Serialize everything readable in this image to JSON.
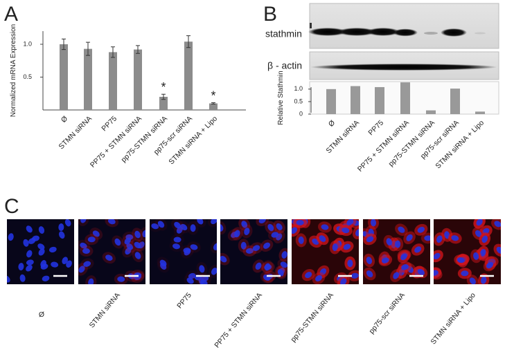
{
  "panel_labels": [
    "A",
    "B",
    "C"
  ],
  "blot_labels": [
    "stathmin",
    "β - actin"
  ],
  "image_labels": [
    "Ø",
    "STMN siRNA",
    "PP75",
    "PP75 + STMN siRNA",
    "pp75-STMN siRNA",
    "pp75-scr siRNA",
    "STMN siRNA + Lipo"
  ],
  "chart_data": [
    {
      "type": "bar",
      "y_label": "Normalized mRNA Expression",
      "categories": [
        "Ø",
        "STMN siRNA",
        "PP75",
        "PP75 + STMN siRNA",
        "pp75-STMN siRNA",
        "pp75-scr siRNA",
        "STMN siRNA + Lipo"
      ],
      "values": [
        1.0,
        0.93,
        0.88,
        0.92,
        0.2,
        1.04,
        0.1
      ],
      "errors": [
        0.08,
        0.1,
        0.08,
        0.06,
        0.04,
        0.09,
        0.01
      ],
      "annotations": [
        null,
        null,
        null,
        null,
        "*",
        null,
        "*"
      ],
      "color": "#8c8c8c",
      "ylim": [
        0,
        1.2
      ],
      "yticks": [
        {
          "value": 0.5,
          "label": "0.5"
        },
        {
          "value": 1.0,
          "label": "1.0"
        }
      ]
    },
    {
      "type": "bar",
      "y_label": "Relative Stathmin",
      "categories": [
        "Ø",
        "STMN siRNA",
        "PP75",
        "PP75 + STMN siRNA",
        "pp75-STMN siRNA",
        "pp75-scr siRNA",
        "STMN siRNA + Lipo"
      ],
      "values": [
        1.0,
        1.12,
        1.08,
        1.27,
        0.15,
        1.02,
        0.1
      ],
      "color": "#999999",
      "ylim": [
        0,
        1.3
      ],
      "yticks": [
        0,
        {
          "value": 0.5,
          "label": "0.5"
        },
        {
          "value": 1.0,
          "label": "1.0"
        }
      ]
    }
  ]
}
